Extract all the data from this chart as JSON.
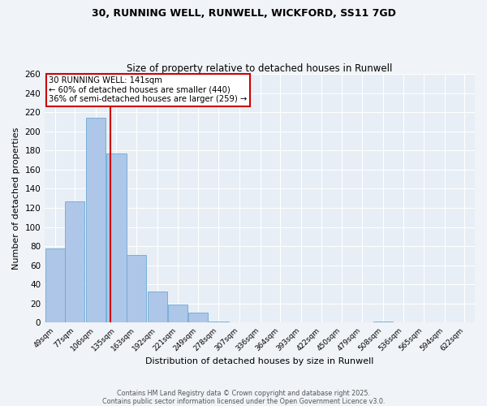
{
  "title_line1": "30, RUNNING WELL, RUNWELL, WICKFORD, SS11 7GD",
  "title_line2": "Size of property relative to detached houses in Runwell",
  "xlabel": "Distribution of detached houses by size in Runwell",
  "ylabel": "Number of detached properties",
  "bin_labels": [
    "49sqm",
    "77sqm",
    "106sqm",
    "135sqm",
    "163sqm",
    "192sqm",
    "221sqm",
    "249sqm",
    "278sqm",
    "307sqm",
    "336sqm",
    "364sqm",
    "393sqm",
    "422sqm",
    "450sqm",
    "479sqm",
    "508sqm",
    "536sqm",
    "565sqm",
    "594sqm",
    "622sqm"
  ],
  "bin_edges": [
    49,
    77,
    106,
    135,
    163,
    192,
    221,
    249,
    278,
    307,
    336,
    364,
    393,
    422,
    450,
    479,
    508,
    536,
    565,
    594,
    622
  ],
  "bar_heights": [
    78,
    127,
    214,
    177,
    71,
    33,
    19,
    11,
    1,
    0,
    0,
    0,
    0,
    0,
    0,
    0,
    1,
    0,
    0,
    0,
    0
  ],
  "bar_color": "#aec6e8",
  "bar_edgecolor": "#6aaad4",
  "background_color": "#e8eef5",
  "fig_background_color": "#f0f4f8",
  "grid_color": "#ffffff",
  "vline_x": 141,
  "vline_color": "#cc0000",
  "ylim": [
    0,
    260
  ],
  "yticks": [
    0,
    20,
    40,
    60,
    80,
    100,
    120,
    140,
    160,
    180,
    200,
    220,
    240,
    260
  ],
  "annotation_title": "30 RUNNING WELL: 141sqm",
  "annotation_line2": "← 60% of detached houses are smaller (440)",
  "annotation_line3": "36% of semi-detached houses are larger (259) →",
  "annotation_box_facecolor": "#ffffff",
  "annotation_box_edgecolor": "#cc0000",
  "footer_line1": "Contains HM Land Registry data © Crown copyright and database right 2025.",
  "footer_line2": "Contains public sector information licensed under the Open Government Licence v3.0."
}
